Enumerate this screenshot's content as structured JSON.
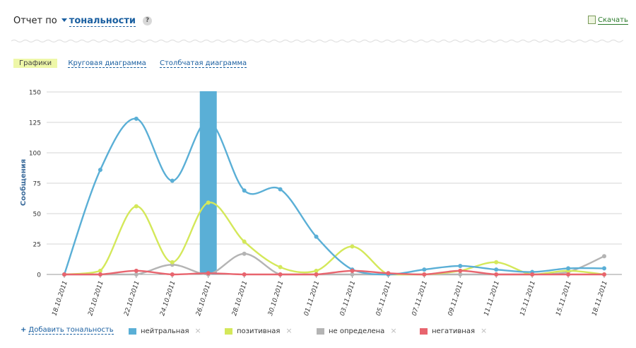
{
  "header": {
    "prefix": "Отчет по",
    "dropdown": "тональности",
    "help": "?"
  },
  "download": {
    "label": "Скачать"
  },
  "tabs": [
    {
      "label": "Графики",
      "active": true
    },
    {
      "label": "Круговая диаграмма",
      "active": false
    },
    {
      "label": "Столбчатая диаграмма",
      "active": false
    }
  ],
  "legend": {
    "add_label": "Добавить тональность",
    "items": [
      {
        "label": "нейтральная",
        "color": "#5aafd6"
      },
      {
        "label": "позитивная",
        "color": "#d4e85a"
      },
      {
        "label": "не определена",
        "color": "#b4b4b4"
      },
      {
        "label": "негативная",
        "color": "#e8646e"
      }
    ],
    "remove_icon": "×"
  },
  "chart_data": {
    "type": "line",
    "ylabel": "Сообщения",
    "ylim": [
      0,
      150
    ],
    "yticks": [
      0,
      25,
      50,
      75,
      100,
      125,
      150
    ],
    "x_labels": [
      "18.10.2011",
      "20.10.2011",
      "22.10.2011",
      "24.10.2011",
      "26.10.2011",
      "28.10.2011",
      "30.10.2011",
      "01.11.2011",
      "03.11.2011",
      "05.11.2011",
      "07.11.2011",
      "09.11.2011",
      "11.11.2011",
      "13.11.2011",
      "15.11.2011",
      "18.11.2011"
    ],
    "highlight_index": 4,
    "series": [
      {
        "name": "нейтральная",
        "color": "#5aafd6",
        "values": [
          0,
          86,
          128,
          77,
          126,
          69,
          70,
          31,
          4,
          0,
          4,
          7,
          4,
          2,
          5,
          5
        ]
      },
      {
        "name": "позитивная",
        "color": "#d4e85a",
        "values": [
          0,
          3,
          56,
          10,
          59,
          27,
          6,
          3,
          23,
          0,
          0,
          3,
          10,
          0,
          3,
          0
        ]
      },
      {
        "name": "не определена",
        "color": "#b4b4b4",
        "values": [
          0,
          0,
          0,
          8,
          0,
          17,
          0,
          0,
          0,
          0,
          0,
          0,
          0,
          0,
          2,
          15
        ]
      },
      {
        "name": "негативная",
        "color": "#e8646e",
        "values": [
          0,
          0,
          3,
          0,
          1,
          0,
          0,
          0,
          3,
          1,
          0,
          3,
          0,
          0,
          0,
          0
        ]
      }
    ]
  }
}
